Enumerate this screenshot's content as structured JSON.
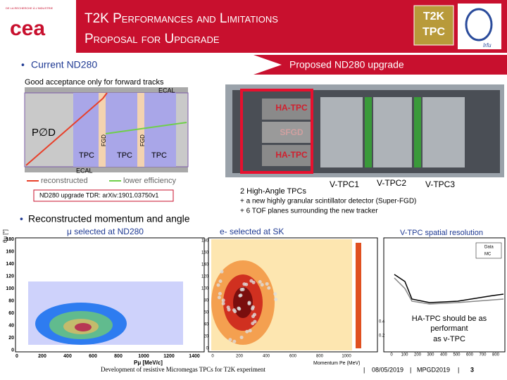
{
  "header": {
    "org": "DE LA RECHERCHE À L'INDUSTRIE",
    "logo": "cea",
    "title_line1": "T2K Performances and Limitations",
    "title_line2": "Proposal for Updgrade",
    "badge": [
      "T2K",
      "TPC"
    ],
    "lab": "Irfu"
  },
  "left": {
    "heading": "Current ND280",
    "caption": "Good acceptance only for forward tracks",
    "diagram_labels": [
      "ECAL",
      "P∅D",
      "TPC",
      "FGD",
      "TPC",
      "FGD",
      "TPC",
      "ECAL"
    ],
    "legend": [
      "reconstructed",
      "lower efficiency"
    ],
    "reference": "ND280 upgrade TDR: arXiv:1901.03750v1",
    "bullet": "Reconstructed momentum and angle"
  },
  "right": {
    "heading": "Proposed ND280 upgrade",
    "detector_labels": [
      "HA-TPC",
      "SFGD",
      "HA-TPC"
    ],
    "vtpc_labels": [
      "V-TPC1",
      "V-TPC2",
      "V-TPC3"
    ],
    "notes": [
      "2 High-Angle TPCs",
      "+  a new highly granular scintillator detector (Super-FGD)",
      "+ 6 TOF planes surrounding the new tracker"
    ]
  },
  "plots": [
    {
      "title": "μ selected at ND280",
      "y_label": "θμ [°]",
      "x_label": "Pμ [MeV/c]",
      "yticks": [
        "180",
        "160",
        "140",
        "120",
        "100",
        "80",
        "60",
        "40",
        "20",
        "0"
      ],
      "xticks": [
        "0",
        "200",
        "400",
        "600",
        "800",
        "1000",
        "1200",
        "1400"
      ]
    },
    {
      "title": "e- selected at SK",
      "x_label": "Momentum Pe (MeV)",
      "yticks": [
        "180",
        "160",
        "140",
        "120",
        "100",
        "80",
        "60",
        "40",
        "20",
        "0"
      ],
      "xticks": [
        "0",
        "200",
        "400",
        "600",
        "800",
        "1000"
      ]
    },
    {
      "title": "V-TPC spatial resolution",
      "legend": [
        "Data",
        "MC"
      ],
      "yticks": [
        "0.4",
        "0.2"
      ],
      "xticks": [
        "0",
        "100",
        "200",
        "300",
        "400",
        "500",
        "600",
        "700",
        "800"
      ],
      "annotation": [
        "HA-TPC should be as",
        "performant",
        "as v-TPC"
      ]
    }
  ],
  "footer": {
    "talk": "Development of resistive Micromegas TPCs for T2K experiment",
    "date": "08/05/2019",
    "conference": "MPGD2019",
    "page": "3"
  }
}
